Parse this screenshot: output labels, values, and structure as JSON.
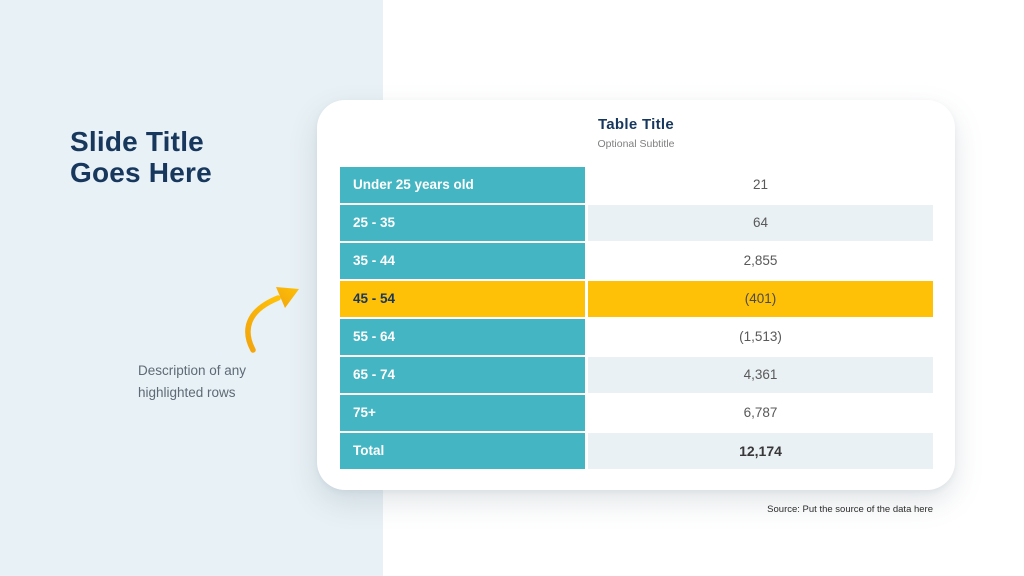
{
  "slide": {
    "title": "Slide Title\nGoes Here",
    "description": "Description of any\nhighlighted rows",
    "source": "Source: Put the source of the data here"
  },
  "table": {
    "title": "Table Title",
    "subtitle": "Optional Subtitle",
    "rows": [
      {
        "label": "Under 25 years old",
        "value": "21",
        "highlight": false,
        "shaded": false,
        "total": false
      },
      {
        "label": "25 - 35",
        "value": "64",
        "highlight": false,
        "shaded": true,
        "total": false
      },
      {
        "label": "35 - 44",
        "value": "2,855",
        "highlight": false,
        "shaded": false,
        "total": false
      },
      {
        "label": "45 - 54",
        "value": "(401)",
        "highlight": true,
        "shaded": false,
        "total": false
      },
      {
        "label": "55 - 64",
        "value": "(1,513)",
        "highlight": false,
        "shaded": false,
        "total": false
      },
      {
        "label": "65 - 74",
        "value": "4,361",
        "highlight": false,
        "shaded": true,
        "total": false
      },
      {
        "label": "75+",
        "value": "6,787",
        "highlight": false,
        "shaded": false,
        "total": false
      },
      {
        "label": "Total",
        "value": "12,174",
        "highlight": false,
        "shaded": true,
        "total": true
      }
    ]
  },
  "colors": {
    "teal": "#44b5c2",
    "highlight": "#ffc107",
    "navy": "#17375d",
    "panel": "#e8f1f5",
    "shaded_row": "#eaf1f4",
    "arrow": "#fdb913"
  },
  "chart_data": {
    "type": "table",
    "title": "Table Title",
    "subtitle": "Optional Subtitle",
    "categories": [
      "Under 25 years old",
      "25 - 35",
      "35 - 44",
      "45 - 54",
      "55 - 64",
      "65 - 74",
      "75+",
      "Total"
    ],
    "values": [
      21,
      64,
      2855,
      -401,
      -1513,
      4361,
      6787,
      12174
    ],
    "value_labels": [
      "21",
      "64",
      "2,855",
      "(401)",
      "(1,513)",
      "4,361",
      "6,787",
      "12,174"
    ],
    "highlighted_category": "45 - 54",
    "legend_position": "none"
  }
}
